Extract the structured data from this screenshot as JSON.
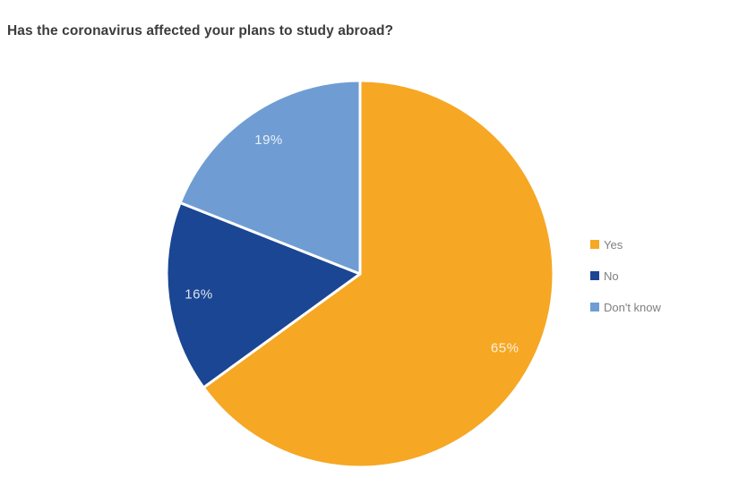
{
  "chart_data": {
    "type": "pie",
    "title": "Has the coronavirus affected your plans to study abroad?",
    "labels": [
      "Yes",
      "No",
      "Don't know"
    ],
    "values": [
      65,
      16,
      19
    ],
    "value_labels": [
      "65%",
      "16%",
      "19%"
    ],
    "colors": [
      "#F6A723",
      "#1B4693",
      "#6F9DD3"
    ],
    "legend_position": "right",
    "start_angle_deg": 0,
    "direction": "clockwise",
    "slice_border_color": "#FFFFFF",
    "slice_label_color": "rgba(255,255,255,0.85)"
  },
  "styles": {
    "title_color": "#3C3C3B",
    "legend_text_color": "#7F7F7F",
    "background_color": "#FFFFFF"
  }
}
